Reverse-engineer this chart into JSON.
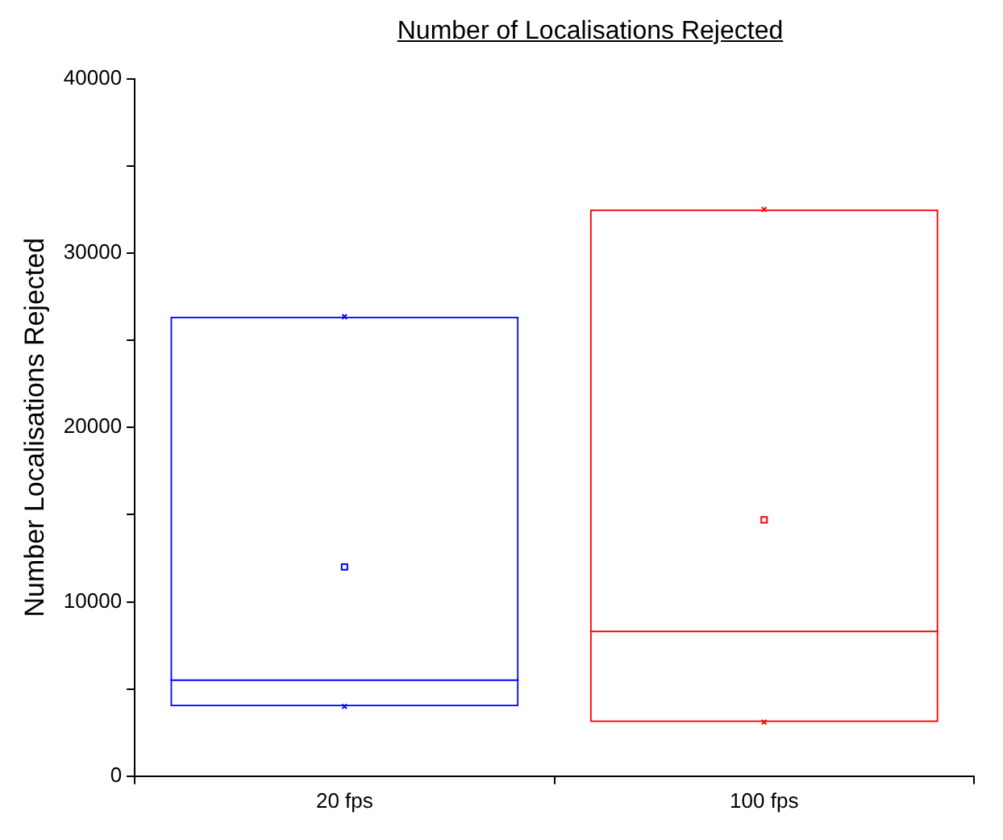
{
  "chart_data": {
    "type": "box",
    "title": "Number of Localisations Rejected",
    "ylabel": "Number Localisations Rejected",
    "categories": [
      "20 fps",
      "100 fps"
    ],
    "colors": [
      "#0000ff",
      "#ff0000"
    ],
    "boxes": [
      {
        "low": 4000,
        "q1": 4000,
        "median": 5500,
        "q3": 26350,
        "high": 26350,
        "mean": 12000
      },
      {
        "low": 3100,
        "q1": 3100,
        "median": 8300,
        "q3": 32500,
        "high": 32500,
        "mean": 14700
      }
    ],
    "ylim": [
      0,
      40000
    ],
    "yticks": [
      0,
      {
        "value": 5000,
        "label": null
      },
      10000,
      {
        "value": 15000,
        "label": null
      },
      20000,
      {
        "value": 25000,
        "label": null
      },
      30000,
      {
        "value": 35000,
        "label": null
      },
      40000
    ],
    "grid": false,
    "legend": false
  }
}
